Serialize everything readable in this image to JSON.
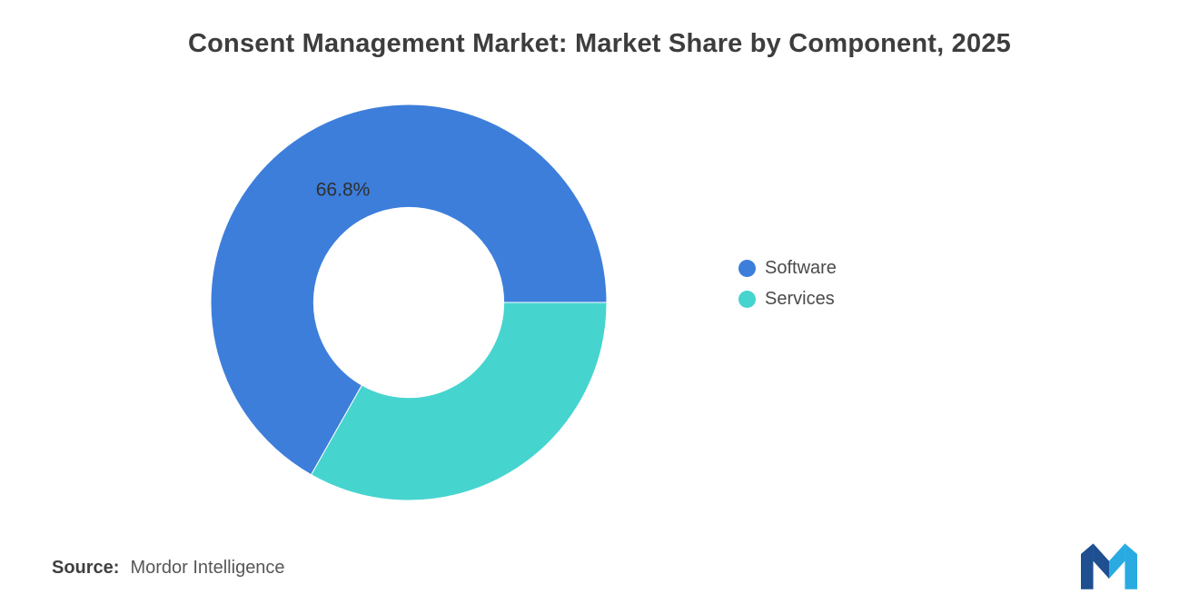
{
  "chart_data": {
    "type": "pie",
    "title": "Consent Management Market: Market Share by Component, 2025",
    "donut": true,
    "inner_radius_ratio": 0.48,
    "legend_position": "right",
    "slices": [
      {
        "label": "Software",
        "value": 66.8,
        "color": "#3d7edb",
        "data_label": "66.8%"
      },
      {
        "label": "Services",
        "value": 33.2,
        "color": "#46d4cf",
        "data_label": ""
      }
    ]
  },
  "source": {
    "prefix": "Source:",
    "text": "Mordor Intelligence"
  },
  "logo": {
    "name": "mordor-intelligence-logo",
    "dark_color": "#1d4f91",
    "light_color": "#29abe2"
  }
}
